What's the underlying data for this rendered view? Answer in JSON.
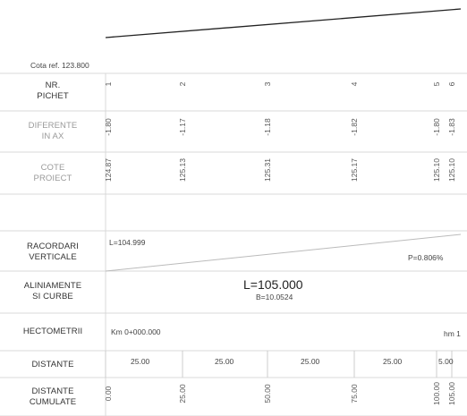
{
  "reference_level": "Cota ref. 123.800",
  "rows": {
    "pichet": {
      "label_line1": "NR.",
      "label_line2": "PICHET",
      "values": [
        "1",
        "2",
        "3",
        "4",
        "5",
        "6"
      ]
    },
    "diferente": {
      "label_line1": "DIFERENTE",
      "label_line2": "IN AX",
      "values": [
        "-1.80",
        "-1.17",
        "-1.18",
        "-1.82",
        "-1.80",
        "-1.83"
      ]
    },
    "cote": {
      "label_line1": "COTE",
      "label_line2": "PROIECT",
      "values": [
        "124.87",
        "125.13",
        "125.31",
        "125.17",
        "125.10",
        "125.10"
      ]
    },
    "racordari": {
      "label_line1": "RACORDARI",
      "label_line2": "VERTICALE",
      "left_text": "L=104.999",
      "right_text": "P=0.806%"
    },
    "aliniamente": {
      "label_line1": "ALINIAMENTE",
      "label_line2": "SI CURBE",
      "main_text": "L=105.000",
      "sub_text": "B=10.0524"
    },
    "hectometrii": {
      "label": "HECTOMETRII",
      "start_text": "Km 0+000.000",
      "end_text": "hm 1"
    },
    "distante": {
      "label": "DISTANTE",
      "values": [
        "25.00",
        "25.00",
        "25.00",
        "25.00",
        "5.00"
      ]
    },
    "cumulate": {
      "label_line1": "DISTANTE",
      "label_line2": "CUMULATE",
      "values": [
        "0.00",
        "25.00",
        "50.00",
        "75.00",
        "100.00",
        "105.00"
      ]
    }
  },
  "colors": {
    "line": "#222222",
    "grid": "#d9d9d9",
    "faint_text": "#9a9a9a"
  }
}
